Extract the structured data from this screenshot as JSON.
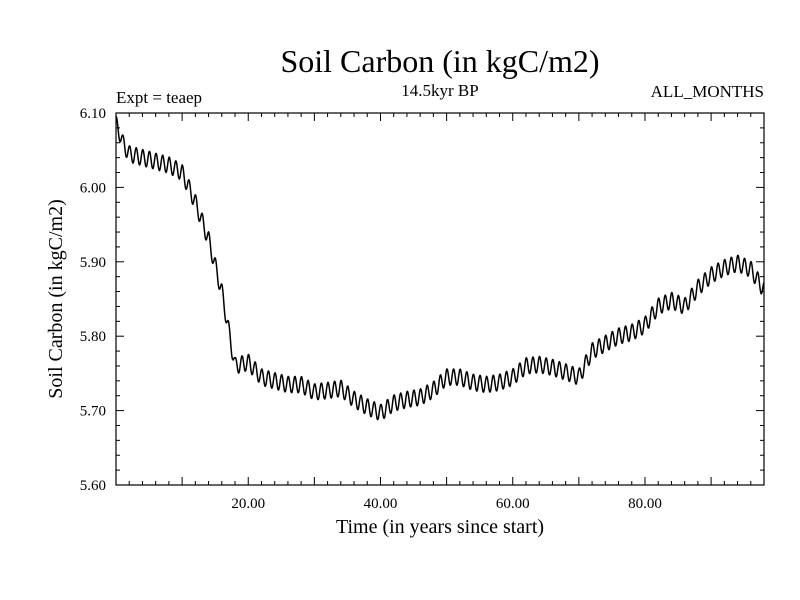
{
  "chart_data": {
    "type": "line",
    "title": "Soil Carbon (in kgC/m2)",
    "subtitle": "14.5kyr BP",
    "left_label": "Expt = teaep",
    "right_label": "ALL_MONTHS",
    "xlabel": "Time (in years since start)",
    "ylabel": "Soil Carbon (in kgC/m2)",
    "xlim": [
      0,
      98
    ],
    "ylim": [
      5.6,
      6.1
    ],
    "x_ticks": [
      {
        "value": 20,
        "label": "20.00"
      },
      {
        "value": 40,
        "label": "40.00"
      },
      {
        "value": 60,
        "label": "60.00"
      },
      {
        "value": 80,
        "label": "80.00"
      }
    ],
    "y_ticks": [
      {
        "value": 5.6,
        "label": "5.60"
      },
      {
        "value": 5.7,
        "label": "5.70"
      },
      {
        "value": 5.8,
        "label": "5.80"
      },
      {
        "value": 5.9,
        "label": "5.90"
      },
      {
        "value": 6.0,
        "label": "6.00"
      },
      {
        "value": 6.1,
        "label": "6.10"
      }
    ],
    "grid": false,
    "series": [
      {
        "name": "Soil Carbon",
        "color": "#000000",
        "seasonal_amplitude": 0.011,
        "seasonal_period_years": 1,
        "trend": {
          "x": [
            0,
            0.5,
            1,
            2,
            4,
            6,
            8,
            10,
            11,
            12,
            13,
            14,
            15,
            16,
            17,
            18,
            20,
            22,
            24,
            26,
            28,
            30,
            32,
            34,
            36,
            38,
            40,
            42,
            44,
            46,
            48,
            50,
            52,
            54,
            56,
            58,
            60,
            62,
            64,
            66,
            68,
            70,
            72,
            74,
            76,
            78,
            80,
            82,
            84,
            86,
            88,
            90,
            92,
            94,
            96,
            98
          ],
          "y": [
            6.085,
            6.075,
            6.06,
            6.045,
            6.04,
            6.035,
            6.03,
            6.02,
            6.0,
            5.98,
            5.955,
            5.93,
            5.895,
            5.86,
            5.81,
            5.76,
            5.765,
            5.745,
            5.74,
            5.735,
            5.735,
            5.725,
            5.727,
            5.73,
            5.715,
            5.705,
            5.697,
            5.71,
            5.715,
            5.718,
            5.728,
            5.745,
            5.745,
            5.738,
            5.735,
            5.738,
            5.745,
            5.76,
            5.762,
            5.758,
            5.752,
            5.745,
            5.78,
            5.79,
            5.8,
            5.805,
            5.815,
            5.84,
            5.848,
            5.84,
            5.865,
            5.882,
            5.892,
            5.898,
            5.89,
            5.862
          ]
        }
      }
    ]
  }
}
